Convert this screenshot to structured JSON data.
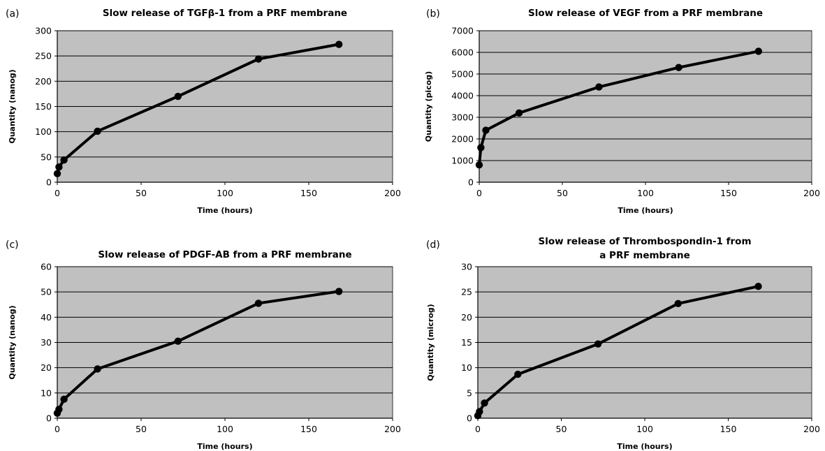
{
  "chart_data": [
    {
      "type": "line",
      "panel_label": "(a)",
      "title_lines": [
        "Slow release of TGFβ-1 from a PRF membrane"
      ],
      "xlabel": "Time (hours)",
      "ylabel": "Quantity (nanog)",
      "xlim": [
        0,
        200
      ],
      "ylim": [
        0,
        300
      ],
      "xticks": [
        0,
        50,
        100,
        150,
        200
      ],
      "yticks": [
        0,
        50,
        100,
        150,
        200,
        250,
        300
      ],
      "grid": true,
      "background": "#c0c0c0",
      "line_color": "#000000",
      "x": [
        0,
        1,
        4,
        24,
        72,
        120,
        168
      ],
      "y": [
        17,
        30,
        44,
        101,
        170,
        244,
        273
      ]
    },
    {
      "type": "line",
      "panel_label": "(b)",
      "title_lines": [
        "Slow release of VEGF from a PRF membrane"
      ],
      "xlabel": "Time (hours)",
      "ylabel": "Quantity (picog)",
      "xlim": [
        0,
        200
      ],
      "ylim": [
        0,
        7000
      ],
      "xticks": [
        0,
        50,
        100,
        150,
        200
      ],
      "yticks": [
        0,
        1000,
        2000,
        3000,
        4000,
        5000,
        6000,
        7000
      ],
      "grid": true,
      "background": "#c0c0c0",
      "line_color": "#000000",
      "x": [
        0,
        1,
        4,
        24,
        72,
        120,
        168
      ],
      "y": [
        800,
        1600,
        2400,
        3200,
        4400,
        5300,
        6050
      ]
    },
    {
      "type": "line",
      "panel_label": "(c)",
      "title_lines": [
        "Slow release of PDGF-AB from a PRF membrane"
      ],
      "xlabel": "Time (hours)",
      "ylabel": "Quantity (nanog)",
      "xlim": [
        0,
        200
      ],
      "ylim": [
        0,
        60
      ],
      "xticks": [
        0,
        50,
        100,
        150,
        200
      ],
      "yticks": [
        0,
        10,
        20,
        30,
        40,
        50,
        60
      ],
      "grid": true,
      "background": "#c0c0c0",
      "line_color": "#000000",
      "x": [
        0,
        1,
        4,
        24,
        72,
        120,
        168
      ],
      "y": [
        2,
        3.5,
        7.5,
        19.5,
        30.5,
        45.5,
        50.2
      ]
    },
    {
      "type": "line",
      "panel_label": "(d)",
      "title_lines": [
        "Slow release of Thrombospondin-1 from",
        "a PRF membrane"
      ],
      "xlabel": "Time (hours)",
      "ylabel": "Quantity (microg)",
      "xlim": [
        0,
        200
      ],
      "ylim": [
        0,
        30
      ],
      "xticks": [
        0,
        50,
        100,
        150,
        200
      ],
      "yticks": [
        0,
        5,
        10,
        15,
        20,
        25,
        30
      ],
      "grid": true,
      "background": "#c0c0c0",
      "line_color": "#000000",
      "x": [
        0,
        1,
        4,
        24,
        72,
        120,
        168
      ],
      "y": [
        0.5,
        1.3,
        3,
        8.7,
        14.7,
        22.7,
        26.1
      ]
    }
  ]
}
